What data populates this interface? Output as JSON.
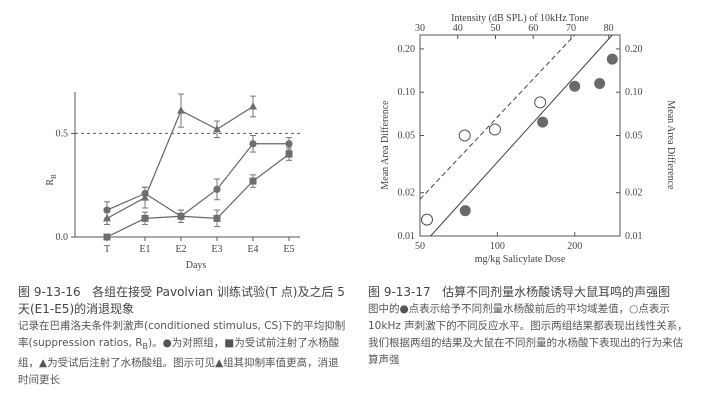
{
  "chart_data": [
    {
      "type": "line",
      "figure_id": "图 9-13-16",
      "title": "各组在接受 Pavolvian 训练试验(T 点)及之后 5 天(E1-E5)的消退现象",
      "caption": "记录在巴甫洛夫条件刺激声(conditioned stimulus, CS)下的平均抑制率(suppression ratios, R",
      "caption_sub": "B",
      "caption_end": ")。●为对照组，■为受试前注射了水杨酸组，▲为受试后注射了水杨酸组。图示可见▲组其抑制率值更高，消退时间更长",
      "xlabel": "Days",
      "ylabel": "R",
      "ylabel_sub": "B",
      "categories": [
        "T",
        "E1",
        "E2",
        "E3",
        "E4",
        "E5"
      ],
      "ylim": [
        0,
        0.7
      ],
      "yticks": [
        "0.0",
        "0.5"
      ],
      "reference_line": 0.5,
      "series": [
        {
          "marker": "circle",
          "values": [
            0.13,
            0.21,
            0.1,
            0.23,
            0.45,
            0.45
          ],
          "errors": [
            0.04,
            0.03,
            0.03,
            0.05,
            0.04,
            0.03
          ]
        },
        {
          "marker": "square",
          "values": [
            0.0,
            0.09,
            0.1,
            0.09,
            0.27,
            0.4
          ],
          "errors": [
            0.0,
            0.03,
            0.03,
            0.04,
            0.03,
            0.03
          ]
        },
        {
          "marker": "triangle",
          "values": [
            0.09,
            0.19,
            0.61,
            0.52,
            0.63,
            null
          ],
          "errors": [
            0.03,
            0.05,
            0.08,
            0.04,
            0.05,
            0
          ]
        }
      ]
    },
    {
      "type": "scatter",
      "figure_id": "图 9-13-17",
      "title": "估算不同剂量水杨酸诱导大鼠耳鸣的声强图",
      "caption": "图中的●点表示给予不同剂量水杨酸前后的平均域差值，○点表示 10kHz 声刺激下的不同反应水平。图示两组结果都表现出线性关系，我们根据两组的结果及大鼠在不同剂量的水杨酸下表现出的行为来估算声强",
      "xlabel": "mg/kg Salicylate Dose",
      "ylabel_left": "Mean Area Difference",
      "ylabel_right": "Mean Area Difference",
      "top_xlabel": "Intensity (dB SPL) of 10kHz Tone",
      "x_scale": "log",
      "y_scale": "log",
      "xlim": [
        50,
        300
      ],
      "ylim": [
        0.01,
        0.25
      ],
      "xticks": [
        "50",
        "100",
        "200"
      ],
      "yticks": [
        "0.01",
        "0.02",
        "0.05",
        "0.10",
        "0.20"
      ],
      "top_xlim": [
        30,
        83
      ],
      "top_xticks": [
        "30",
        "40",
        "50",
        "60",
        "70",
        "80"
      ],
      "filled_points": {
        "x": [
          75,
          150,
          200,
          250,
          280
        ],
        "y": [
          0.015,
          0.062,
          0.11,
          0.115,
          0.17
        ]
      },
      "open_points": {
        "top_x": [
          30,
          40,
          48,
          60
        ],
        "y": [
          0.013,
          0.05,
          0.055,
          0.085
        ]
      },
      "fit_solid": {
        "x": [
          55,
          280
        ],
        "y": [
          0.01,
          0.25
        ]
      },
      "fit_dashed": {
        "x": [
          50,
          200
        ],
        "y": [
          0.018,
          0.25
        ]
      }
    }
  ]
}
